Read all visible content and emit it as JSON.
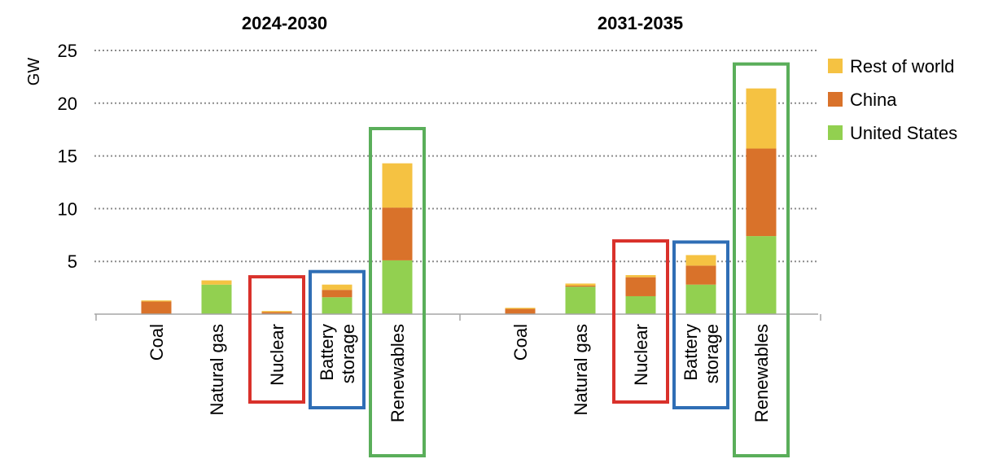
{
  "chart_data": {
    "type": "bar",
    "stacked": true,
    "ylabel": "GW",
    "ylim": [
      0,
      25
    ],
    "yticks": [
      "5",
      "10",
      "15",
      "20",
      "25"
    ],
    "grid": true,
    "legend_position": "right",
    "series": [
      {
        "name": "United States",
        "color": "#92d050"
      },
      {
        "name": "China",
        "color": "#d9722a"
      },
      {
        "name": "Rest of world",
        "color": "#f5c242"
      }
    ],
    "panels": [
      {
        "title": "2024-2030",
        "categories": [
          "Coal",
          "Natural gas",
          "Nuclear",
          "Battery storage",
          "Renewables"
        ],
        "label_lines": [
          [
            "Coal"
          ],
          [
            "Natural gas"
          ],
          [
            "Nuclear"
          ],
          [
            "Battery",
            "storage"
          ],
          [
            "Renewables"
          ]
        ],
        "values": {
          "United States": [
            0,
            2.8,
            0,
            1.6,
            5.1
          ],
          "China": [
            1.2,
            0,
            0.2,
            0.7,
            5.0
          ],
          "Rest of world": [
            0.1,
            0.4,
            0.1,
            0.5,
            4.2
          ]
        }
      },
      {
        "title": "2031-2035",
        "categories": [
          "Coal",
          "Natural gas",
          "Nuclear",
          "Battery storage",
          "Renewables"
        ],
        "label_lines": [
          [
            "Coal"
          ],
          [
            "Natural gas"
          ],
          [
            "Nuclear"
          ],
          [
            "Battery",
            "storage"
          ],
          [
            "Renewables"
          ]
        ],
        "values": {
          "United States": [
            0,
            2.6,
            1.7,
            2.8,
            7.4
          ],
          "China": [
            0.5,
            0.1,
            1.8,
            1.8,
            8.3
          ],
          "Rest of world": [
            0.1,
            0.2,
            0.2,
            1.0,
            5.7
          ]
        }
      }
    ],
    "highlight_boxes": [
      {
        "category": "Nuclear",
        "color": "#d9312b"
      },
      {
        "category": "Battery storage",
        "color": "#2f6eb5"
      },
      {
        "category": "Renewables",
        "color": "#5aae5a"
      }
    ]
  }
}
